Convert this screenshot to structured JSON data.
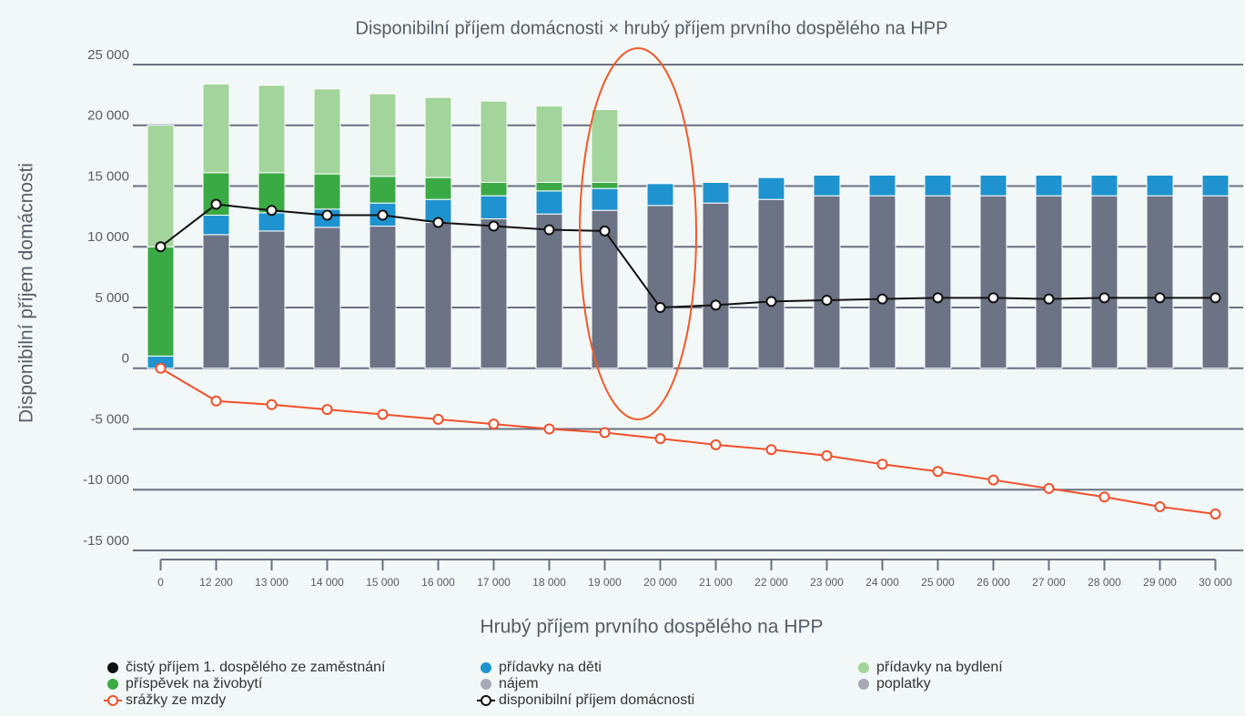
{
  "chart_data": {
    "type": "bar",
    "stacked": true,
    "title": "Disponibilní příjem domácnosti × hrubý příjem prvního dospělého na HPP",
    "x_label": "Hrubý příjem prvního dospělého na HPP",
    "y_label": "Disponibilní příjem domácnosti",
    "categories": [
      "0",
      "12 200",
      "13 000",
      "14 000",
      "15 000",
      "16 000",
      "17 000",
      "18 000",
      "19 000",
      "20 000",
      "21 000",
      "22 000",
      "23 000",
      "24 000",
      "25 000",
      "26 000",
      "27 000",
      "28 000",
      "29 000",
      "30 000"
    ],
    "ylim": [
      -15000,
      25000
    ],
    "yticks": [
      {
        "value": -15000,
        "label": "-15 000"
      },
      {
        "value": -10000,
        "label": "-10 000"
      },
      {
        "value": -5000,
        "label": "-5 000"
      },
      0,
      {
        "value": 5000,
        "label": "5 000"
      },
      {
        "value": 10000,
        "label": "10 000"
      },
      {
        "value": 15000,
        "label": "15 000"
      },
      {
        "value": 20000,
        "label": "20 000"
      },
      {
        "value": 25000,
        "label": "25 000"
      }
    ],
    "grid": true,
    "series": [
      {
        "name": "čistý příjem 1. dospělého ze zaměstnání",
        "type": "bar",
        "color": "#6c7385",
        "values": [
          0,
          11000,
          11300,
          11600,
          11700,
          12000,
          12300,
          12700,
          13000,
          13400,
          13600,
          13900,
          14200,
          14200,
          14200,
          14200,
          14200,
          14200,
          14200,
          14200
        ]
      },
      {
        "name": "přídavky na děti",
        "type": "bar",
        "color": "#1f93cf",
        "values": [
          1000,
          1600,
          1500,
          1500,
          1900,
          1900,
          1900,
          1900,
          1800,
          1800,
          1700,
          1800,
          1700,
          1700,
          1700,
          1700,
          1700,
          1700,
          1700,
          1700
        ]
      },
      {
        "name": "příspěvek na živobytí",
        "type": "bar",
        "color": "#3aaa45",
        "values": [
          9000,
          3500,
          3300,
          2900,
          2200,
          1800,
          1100,
          700,
          500,
          0,
          0,
          0,
          0,
          0,
          0,
          0,
          0,
          0,
          0,
          0
        ]
      },
      {
        "name": "přídavky na bydlení",
        "type": "bar",
        "color": "#a3d49b",
        "values": [
          10000,
          7300,
          7200,
          7000,
          6800,
          6600,
          6700,
          6300,
          6000,
          0,
          0,
          0,
          0,
          0,
          0,
          0,
          0,
          0,
          0,
          0
        ]
      },
      {
        "name": "nájem",
        "type": "bar",
        "color": "#a9a9b5",
        "visible": false,
        "values": [
          null,
          null,
          null,
          null,
          null,
          null,
          null,
          null,
          null,
          null,
          null,
          null,
          null,
          null,
          null,
          null,
          null,
          null,
          null,
          null
        ]
      },
      {
        "name": "poplatky",
        "type": "bar",
        "color": "#a9a9b5",
        "visible": false,
        "values": [
          null,
          null,
          null,
          null,
          null,
          null,
          null,
          null,
          null,
          null,
          null,
          null,
          null,
          null,
          null,
          null,
          null,
          null,
          null,
          null
        ]
      },
      {
        "name": "srážky ze mzdy",
        "type": "line",
        "color": "#f0502a",
        "values": [
          0,
          -2700,
          -3000,
          -3400,
          -3800,
          -4200,
          -4600,
          -5000,
          -5300,
          -5800,
          -6300,
          -6700,
          -7200,
          -7900,
          -8500,
          -9200,
          -9900,
          -10600,
          -11400,
          -12000
        ]
      },
      {
        "name": "disponibilní příjem domácnosti",
        "type": "line",
        "color": "#111111",
        "values": [
          10000,
          13500,
          13000,
          12600,
          12600,
          12000,
          11700,
          11400,
          11300,
          5000,
          5200,
          5500,
          5600,
          5700,
          5800,
          5800,
          5700,
          5800,
          5800,
          5800
        ]
      }
    ]
  }
}
